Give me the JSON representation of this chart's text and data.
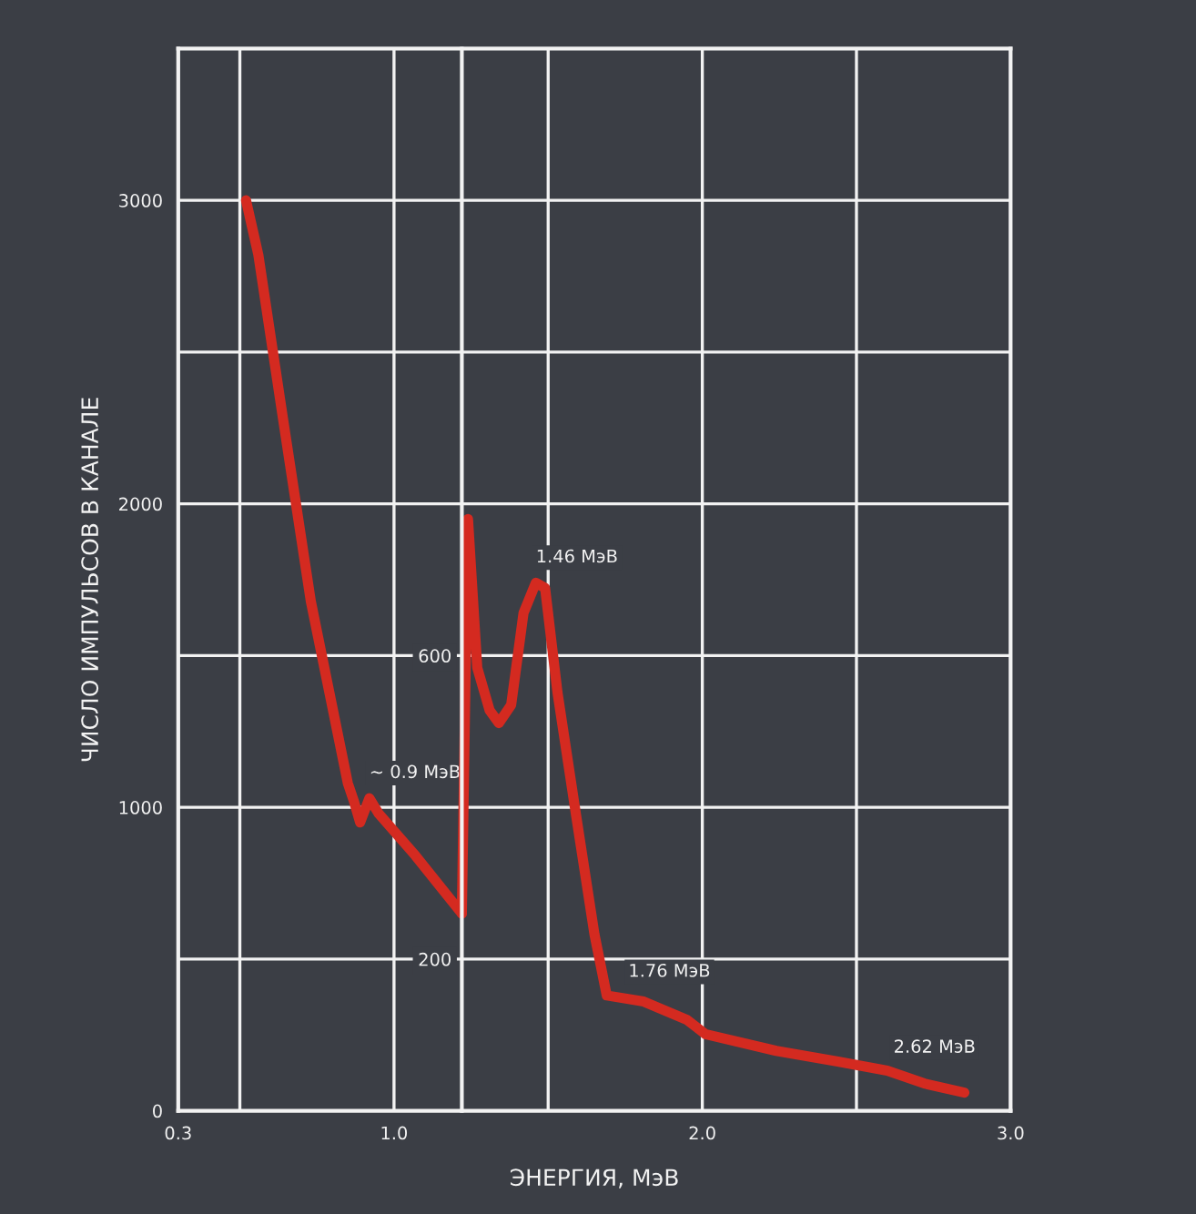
{
  "chart_data": {
    "type": "line",
    "xlabel": "ЭНЕРГИЯ, МэВ",
    "ylabel": "ЧИСЛО ИМПУЛЬСОВ В КАНАЛЕ",
    "xlim": [
      0.3,
      3.0
    ],
    "xticks": [
      0.3,
      {
        "value": 0.5,
        "label": null
      },
      {
        "value": 1,
        "label": "1.0"
      },
      {
        "value": 1.5,
        "label": null
      },
      {
        "value": 2,
        "label": "2.0"
      },
      {
        "value": 2.5,
        "label": null
      },
      {
        "value": 3,
        "label": "3.0"
      }
    ],
    "ylim": [
      0,
      3500
    ],
    "yticks": [
      0,
      {
        "value": 500,
        "label": null
      },
      1000,
      {
        "value": 1500,
        "label": null
      },
      2000,
      {
        "value": 2500,
        "label": null
      },
      3000
    ],
    "y2lim": [
      0,
      1400
    ],
    "y2ticks": [
      200,
      600
    ],
    "grid": true,
    "marker": "none",
    "line_style": "solid",
    "series": [
      {
        "color": "#d42a20",
        "x": [
          0.52,
          0.56,
          0.64,
          0.73,
          0.79,
          0.85,
          0.87,
          0.89,
          0.92,
          0.95,
          1.07,
          1.22
        ],
        "values": [
          3000,
          2820,
          2280,
          1680,
          1380,
          1080,
          1020,
          950,
          1030,
          980,
          840,
          650
        ]
      },
      {
        "color": "#d42a20",
        "axis": "y2",
        "x": [
          1.22,
          1.24,
          1.27,
          1.31,
          1.34,
          1.38,
          1.42,
          1.46,
          1.49,
          1.53,
          1.59,
          1.65,
          1.69,
          1.81,
          1.95,
          2.01,
          2.24,
          2.44,
          2.6,
          2.72,
          2.85
        ],
        "values": [
          260,
          780,
          584,
          528,
          511,
          535,
          656,
          696,
          689,
          552,
          391,
          233,
          152,
          144,
          120,
          101,
          79,
          65,
          53,
          36,
          24
        ]
      }
    ],
    "annotations": [
      {
        "text": "~ 0.9 МэВ",
        "x": 0.92,
        "y": 1030
      },
      {
        "text": "1.46 МэВ",
        "x": 1.46,
        "y": 1740
      },
      {
        "text": "1.76 МэВ",
        "x": 1.76,
        "y": 375
      },
      {
        "text": "2.62 МэВ",
        "x": 2.62,
        "y": 125
      }
    ]
  }
}
